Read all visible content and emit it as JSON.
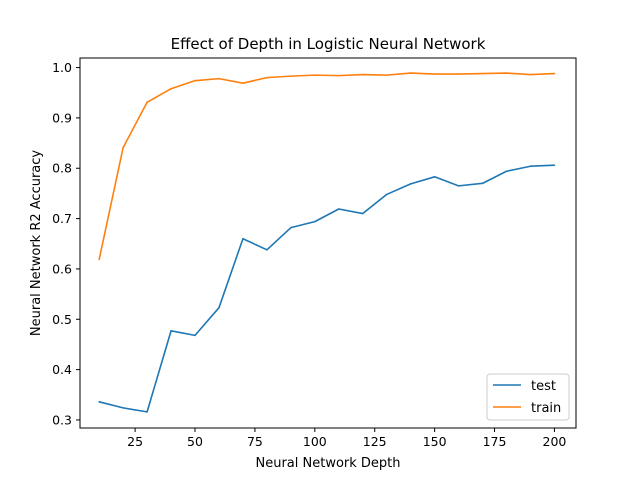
{
  "chart_data": {
    "type": "line",
    "title": "Effect of Depth in Logistic Neural Network",
    "xlabel": "Neural Network Depth",
    "ylabel": "Neural Network R2 Accuracy",
    "x": [
      10,
      20,
      30,
      40,
      50,
      60,
      70,
      80,
      90,
      100,
      110,
      120,
      130,
      140,
      150,
      160,
      170,
      180,
      190,
      200
    ],
    "xlim": [
      2,
      209
    ],
    "ylim": [
      0.284,
      1.019
    ],
    "xticks": [
      25,
      50,
      75,
      100,
      125,
      150,
      175,
      200
    ],
    "yticks": [
      0.3,
      0.4,
      0.5,
      0.6,
      0.7,
      0.8,
      0.9,
      1.0
    ],
    "xtick_labels": [
      "25",
      "50",
      "75",
      "100",
      "125",
      "150",
      "175",
      "200"
    ],
    "ytick_labels": [
      "0.3",
      "0.4",
      "0.5",
      "0.6",
      "0.7",
      "0.8",
      "0.9",
      "1.0"
    ],
    "grid": false,
    "legend_position": "bottom-right",
    "series": [
      {
        "name": "test",
        "color": "#1f77b4",
        "values": [
          0.336,
          0.324,
          0.316,
          0.477,
          0.468,
          0.523,
          0.66,
          0.638,
          0.682,
          0.694,
          0.719,
          0.71,
          0.748,
          0.769,
          0.783,
          0.765,
          0.77,
          0.794,
          0.804,
          0.806
        ]
      },
      {
        "name": "train",
        "color": "#ff7f0e",
        "values": [
          0.619,
          0.841,
          0.931,
          0.958,
          0.974,
          0.978,
          0.969,
          0.98,
          0.983,
          0.985,
          0.984,
          0.986,
          0.985,
          0.989,
          0.987,
          0.987,
          0.988,
          0.989,
          0.986,
          0.988
        ]
      }
    ]
  }
}
